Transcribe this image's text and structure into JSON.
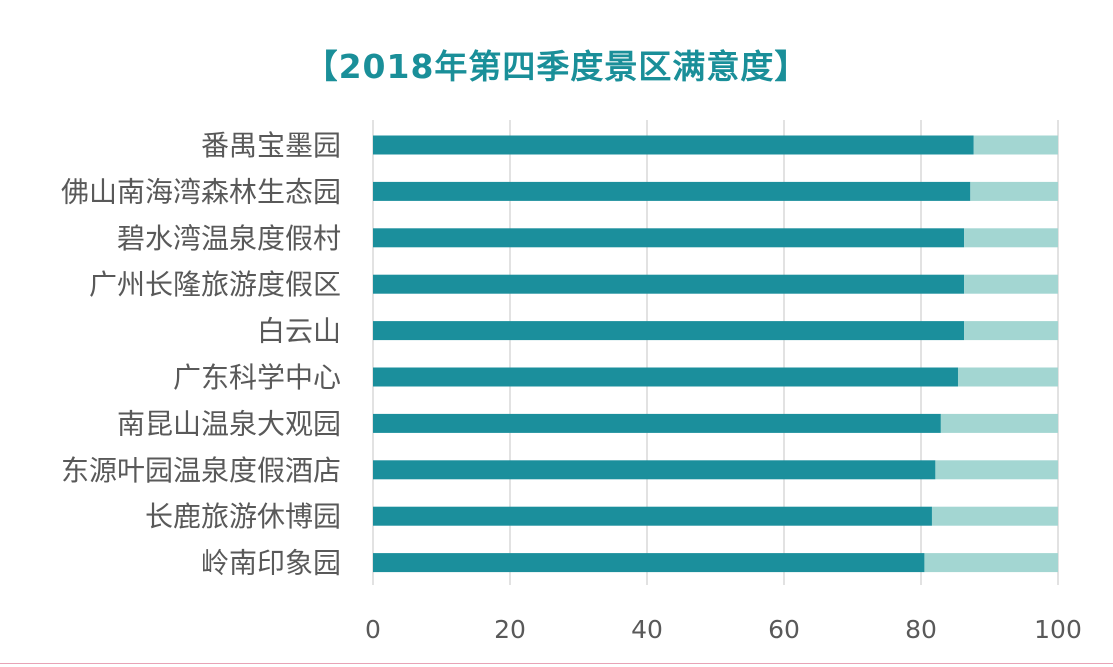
{
  "chart_data": {
    "type": "bar",
    "orientation": "horizontal",
    "stacked": true,
    "title": "【2018年第四季度景区满意度】",
    "categories": [
      "番禺宝墨园",
      "佛山南海湾森林生态园",
      "碧水湾温泉度假村",
      "广州长隆旅游度假区",
      "白云山",
      "广东科学中心",
      "南昆山温泉大观园",
      "东源叶园温泉度假酒店",
      "长鹿旅游休博园",
      "岭南印象园"
    ],
    "series": [
      {
        "values": [
          87.7,
          87.2,
          86.3,
          86.3,
          86.3,
          85.4,
          82.9,
          82.1,
          81.6,
          80.5
        ]
      },
      {
        "values": [
          12.3,
          12.8,
          13.7,
          13.7,
          13.7,
          14.6,
          17.1,
          17.9,
          18.4,
          19.5
        ]
      }
    ],
    "xlim": [
      0,
      100
    ],
    "xticks": [
      "0",
      "20",
      "40",
      "60",
      "80",
      "100"
    ],
    "grid": true,
    "xlabel": "",
    "ylabel": "",
    "colors": {
      "primary": "#1b8f9c",
      "remainder": "#a3d6d2",
      "title": "#1a8f99",
      "grid": "#d9d9d9",
      "label": "#595959"
    }
  }
}
